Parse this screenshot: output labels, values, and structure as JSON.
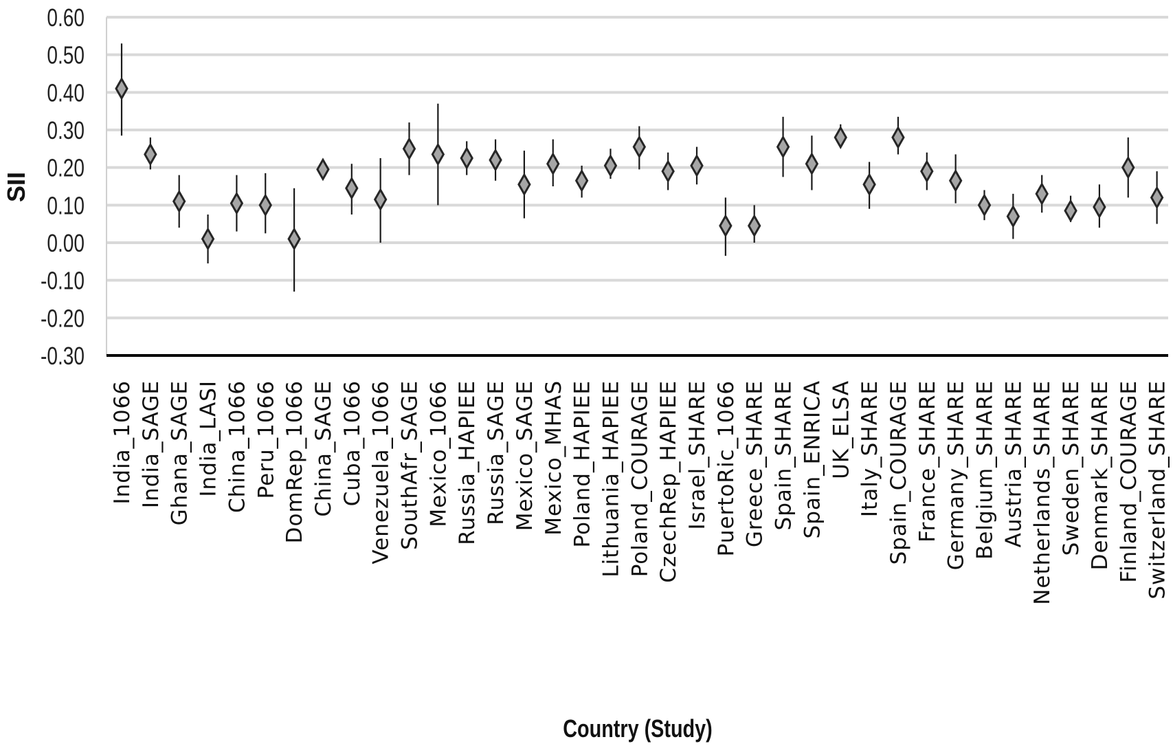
{
  "chart_data": {
    "type": "scatter",
    "title": "",
    "xlabel": "Country (Study)",
    "ylabel": "SII",
    "ylim": [
      -0.3,
      0.6
    ],
    "yticks": [
      "0.60",
      "0.50",
      "0.40",
      "0.30",
      "0.20",
      "0.10",
      "0.00",
      "-0.10",
      "-0.20",
      "-0.30"
    ],
    "grid": true,
    "marker": "diamond",
    "error_bars": true,
    "colors": {
      "marker_fill": "#a6a6a6",
      "marker_stroke": "#262626",
      "grid": "#d9d9d9",
      "axis": "#000000"
    },
    "categories": [
      "India_1066",
      "India_SAGE",
      "Ghana_SAGE",
      "India_LASI",
      "China_1066",
      "Peru_1066",
      "DomRep_1066",
      "China_SAGE",
      "Cuba_1066",
      "Venezuela_1066",
      "SouthAfr_SAGE",
      "Mexico_1066",
      "Russia_HAPIEE",
      "Russia_SAGE",
      "Mexico_SAGE",
      "Mexico_MHAS",
      "Poland_HAPIEE",
      "Lithuania_HAPIEE",
      "Poland_COURAGE",
      "CzechRep_HAPIEE",
      "Israel_SHARE",
      "PuertoRic_1066",
      "Greece_SHARE",
      "Spain_SHARE",
      "Spain_ENRICA",
      "UK_ELSA",
      "Italy_SHARE",
      "Spain_COURAGE",
      "France_SHARE",
      "Germany_SHARE",
      "Belgium_SHARE",
      "Austria_SHARE",
      "Netherlands_SHARE",
      "Sweden_SHARE",
      "Denmark_SHARE",
      "Finland_COURAGE",
      "Switzerland_SHARE"
    ],
    "values": [
      0.41,
      0.235,
      0.11,
      0.01,
      0.105,
      0.1,
      0.01,
      0.195,
      0.145,
      0.115,
      0.25,
      0.235,
      0.225,
      0.22,
      0.155,
      0.21,
      0.165,
      0.205,
      0.255,
      0.19,
      0.205,
      0.045,
      0.045,
      0.255,
      0.21,
      0.28,
      0.155,
      0.28,
      0.19,
      0.165,
      0.1,
      0.07,
      0.13,
      0.085,
      0.095,
      0.2,
      0.12
    ],
    "lower": [
      0.285,
      0.195,
      0.04,
      -0.055,
      0.03,
      0.025,
      -0.13,
      0.175,
      0.075,
      0.0,
      0.18,
      0.1,
      0.18,
      0.165,
      0.065,
      0.15,
      0.12,
      0.17,
      0.195,
      0.14,
      0.155,
      -0.035,
      0.0,
      0.175,
      0.14,
      0.255,
      0.09,
      0.235,
      0.14,
      0.105,
      0.06,
      0.01,
      0.08,
      0.055,
      0.04,
      0.12,
      0.05
    ],
    "upper": [
      0.53,
      0.28,
      0.18,
      0.075,
      0.18,
      0.185,
      0.145,
      0.21,
      0.21,
      0.225,
      0.32,
      0.37,
      0.27,
      0.275,
      0.245,
      0.275,
      0.205,
      0.25,
      0.31,
      0.24,
      0.255,
      0.12,
      0.1,
      0.335,
      0.285,
      0.315,
      0.215,
      0.335,
      0.24,
      0.235,
      0.14,
      0.13,
      0.18,
      0.125,
      0.155,
      0.28,
      0.19
    ]
  }
}
